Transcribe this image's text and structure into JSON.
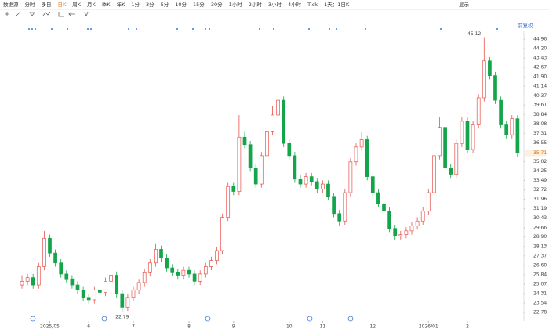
{
  "toolbar": [
    "数据源",
    "分时",
    "多日",
    "日K",
    "周K",
    "月K",
    "季K",
    "年K",
    "1分",
    "3分",
    "5分",
    "10分",
    "15分",
    "30分",
    "1小时",
    "2小时",
    "3小时",
    "4小时",
    "Tick",
    "1天：1日K"
  ],
  "toolbar_right": "显示",
  "adjust_label": "前复权",
  "chart_data": {
    "type": "candlestick",
    "up_color": "#e8524a",
    "down_color": "#14a44a",
    "last_line_color": "#f0a030",
    "candles": [
      [
        25.0,
        25.8,
        24.7,
        25.3
      ],
      [
        25.3,
        25.9,
        25.0,
        25.6
      ],
      [
        25.6,
        25.9,
        24.7,
        25.0
      ],
      [
        25.0,
        26.8,
        24.7,
        26.5
      ],
      [
        26.5,
        29.4,
        26.2,
        28.8
      ],
      [
        28.8,
        29.1,
        27.3,
        27.6
      ],
      [
        27.6,
        27.9,
        26.5,
        26.8
      ],
      [
        26.8,
        27.1,
        25.6,
        25.9
      ],
      [
        25.9,
        26.2,
        25.2,
        25.5
      ],
      [
        25.5,
        25.8,
        24.7,
        25.0
      ],
      [
        25.0,
        25.3,
        24.3,
        24.6
      ],
      [
        24.6,
        24.9,
        23.7,
        24.0
      ],
      [
        24.0,
        24.3,
        23.5,
        23.8
      ],
      [
        23.8,
        24.9,
        23.5,
        24.6
      ],
      [
        24.6,
        24.9,
        24.1,
        24.4
      ],
      [
        24.4,
        25.6,
        24.1,
        25.3
      ],
      [
        25.3,
        26.1,
        25.0,
        25.8
      ],
      [
        25.8,
        26.1,
        24.0,
        24.3
      ],
      [
        24.3,
        24.6,
        22.79,
        23.2
      ],
      [
        23.2,
        24.3,
        22.9,
        24.0
      ],
      [
        24.0,
        24.9,
        23.7,
        24.6
      ],
      [
        24.6,
        25.5,
        24.3,
        25.2
      ],
      [
        25.2,
        26.3,
        24.9,
        26.0
      ],
      [
        26.0,
        27.1,
        25.7,
        26.8
      ],
      [
        26.8,
        28.4,
        26.5,
        27.9
      ],
      [
        27.9,
        28.2,
        26.9,
        27.2
      ],
      [
        27.2,
        27.5,
        26.1,
        26.4
      ],
      [
        26.4,
        26.7,
        25.7,
        26.0
      ],
      [
        26.0,
        26.3,
        25.5,
        25.8
      ],
      [
        25.8,
        26.5,
        25.5,
        26.2
      ],
      [
        26.2,
        26.5,
        25.6,
        25.9
      ],
      [
        25.9,
        26.2,
        25.0,
        25.3
      ],
      [
        25.3,
        26.2,
        25.0,
        25.9
      ],
      [
        25.9,
        26.8,
        25.6,
        26.5
      ],
      [
        26.5,
        27.3,
        26.2,
        27.0
      ],
      [
        27.0,
        28.1,
        26.7,
        27.8
      ],
      [
        27.8,
        30.8,
        27.5,
        30.5
      ],
      [
        30.5,
        33.3,
        30.2,
        33.0
      ],
      [
        33.0,
        33.3,
        32.3,
        32.6
      ],
      [
        32.6,
        38.8,
        32.3,
        37.0
      ],
      [
        37.0,
        37.5,
        36.1,
        36.4
      ],
      [
        36.4,
        36.7,
        34.2,
        34.5
      ],
      [
        34.5,
        34.8,
        32.9,
        33.2
      ],
      [
        33.2,
        35.8,
        32.9,
        35.5
      ],
      [
        35.5,
        38.5,
        35.2,
        37.5
      ],
      [
        37.5,
        39.5,
        37.2,
        38.8
      ],
      [
        38.8,
        41.9,
        38.5,
        40.0
      ],
      [
        40.0,
        40.3,
        36.2,
        36.5
      ],
      [
        36.5,
        36.8,
        35.2,
        35.5
      ],
      [
        35.5,
        35.8,
        33.3,
        33.6
      ],
      [
        33.6,
        33.9,
        32.9,
        33.2
      ],
      [
        33.2,
        34.1,
        32.9,
        33.8
      ],
      [
        33.8,
        34.1,
        33.1,
        33.4
      ],
      [
        33.4,
        33.7,
        32.5,
        32.8
      ],
      [
        32.8,
        33.5,
        32.5,
        33.2
      ],
      [
        33.2,
        33.5,
        31.9,
        32.2
      ],
      [
        32.2,
        32.5,
        30.5,
        30.8
      ],
      [
        30.8,
        31.1,
        29.8,
        30.2
      ],
      [
        30.2,
        32.8,
        29.9,
        32.5
      ],
      [
        32.5,
        35.3,
        32.2,
        35.0
      ],
      [
        35.0,
        36.5,
        34.7,
        36.2
      ],
      [
        36.2,
        37.4,
        35.9,
        36.8
      ],
      [
        36.8,
        37.1,
        33.5,
        33.8
      ],
      [
        33.8,
        34.1,
        32.2,
        32.5
      ],
      [
        32.5,
        32.8,
        31.3,
        31.6
      ],
      [
        31.6,
        31.9,
        30.7,
        31.0
      ],
      [
        31.0,
        31.3,
        29.3,
        29.6
      ],
      [
        29.6,
        29.9,
        28.7,
        29.0
      ],
      [
        29.0,
        29.4,
        28.7,
        29.1
      ],
      [
        29.1,
        29.7,
        28.8,
        29.4
      ],
      [
        29.4,
        30.1,
        29.1,
        29.8
      ],
      [
        29.8,
        30.5,
        29.5,
        30.2
      ],
      [
        30.2,
        31.3,
        29.9,
        31.0
      ],
      [
        31.0,
        32.8,
        30.7,
        32.5
      ],
      [
        32.5,
        35.8,
        32.2,
        35.5
      ],
      [
        35.5,
        38.6,
        35.2,
        37.8
      ],
      [
        37.8,
        38.1,
        34.2,
        34.5
      ],
      [
        34.5,
        34.8,
        33.7,
        34.0
      ],
      [
        34.0,
        36.8,
        33.7,
        36.5
      ],
      [
        36.5,
        38.6,
        36.2,
        38.3
      ],
      [
        38.3,
        38.6,
        35.7,
        36.0
      ],
      [
        36.0,
        38.3,
        35.7,
        38.0
      ],
      [
        38.0,
        40.5,
        37.7,
        40.2
      ],
      [
        40.2,
        45.12,
        39.9,
        43.2
      ],
      [
        43.2,
        43.5,
        41.7,
        42.0
      ],
      [
        42.0,
        42.3,
        39.7,
        40.0
      ],
      [
        40.0,
        40.3,
        37.7,
        38.0
      ],
      [
        38.0,
        38.3,
        36.9,
        37.2
      ],
      [
        37.2,
        38.8,
        36.9,
        38.5
      ],
      [
        38.5,
        38.8,
        35.4,
        35.71
      ]
    ],
    "xticks": [
      {
        "value": 5,
        "label": "2025/05"
      },
      {
        "value": 12,
        "label": "6"
      },
      {
        "value": 20,
        "label": "7"
      },
      {
        "value": 30,
        "label": "8"
      },
      {
        "value": 38,
        "label": "9"
      },
      {
        "value": 48,
        "label": "10"
      },
      {
        "value": 54,
        "label": "11"
      },
      {
        "value": 63,
        "label": "12"
      },
      {
        "value": 73,
        "label": "2026/01"
      },
      {
        "value": 80,
        "label": "2"
      }
    ],
    "ylim": [
      22.08,
      45.6
    ],
    "yticks": [
      44.96,
      {
        "value": 44.2,
        "label": "44.20"
      },
      43.43,
      42.67,
      {
        "value": 41.9,
        "label": "41.90"
      },
      41.14,
      40.37,
      39.61,
      38.84,
      38.08,
      37.31,
      36.55,
      35.02,
      34.25,
      33.49,
      32.72,
      31.96,
      31.19,
      30.43,
      29.66,
      {
        "value": 28.9,
        "label": "28.90"
      },
      28.13,
      27.37,
      {
        "value": 26.6,
        "label": "26.60"
      },
      25.84,
      25.07,
      24.31,
      23.54,
      22.78
    ]
  }
}
